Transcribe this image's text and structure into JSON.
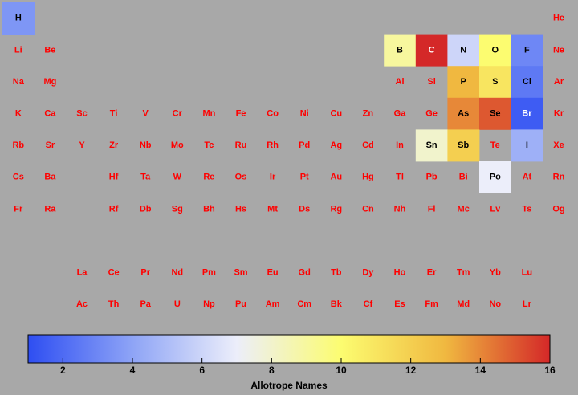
{
  "chart_data": {
    "type": "periodic-heatmap",
    "colorbar_label": "Allotrope Names",
    "clim": [
      1,
      16
    ],
    "cticks": [
      2,
      4,
      6,
      8,
      10,
      12,
      14,
      16
    ],
    "colormap": [
      "#2e4ef2",
      "#8ea4f6",
      "#eceefa",
      "#fcfc70",
      "#f0b840",
      "#d42828"
    ],
    "empty_text_color": "#ff0000",
    "rows": [
      [
        {
          "symbol": "H",
          "value": 3.5
        },
        null,
        null,
        null,
        null,
        null,
        null,
        null,
        null,
        null,
        null,
        null,
        null,
        null,
        null,
        null,
        null,
        {
          "symbol": "He"
        }
      ],
      [
        {
          "symbol": "Li"
        },
        {
          "symbol": "Be"
        },
        null,
        null,
        null,
        null,
        null,
        null,
        null,
        null,
        null,
        null,
        {
          "symbol": "B",
          "value": 9
        },
        {
          "symbol": "C",
          "value": 16
        },
        {
          "symbol": "N",
          "value": 6
        },
        {
          "symbol": "O",
          "value": 10
        },
        {
          "symbol": "F",
          "value": 3
        },
        {
          "symbol": "Ne"
        }
      ],
      [
        {
          "symbol": "Na"
        },
        {
          "symbol": "Mg"
        },
        null,
        null,
        null,
        null,
        null,
        null,
        null,
        null,
        null,
        null,
        {
          "symbol": "Al"
        },
        {
          "symbol": "Si"
        },
        {
          "symbol": "P",
          "value": 13
        },
        {
          "symbol": "S",
          "value": 11
        },
        {
          "symbol": "Cl",
          "value": 2.5
        },
        {
          "symbol": "Ar"
        }
      ],
      [
        {
          "symbol": "K"
        },
        {
          "symbol": "Ca"
        },
        {
          "symbol": "Sc"
        },
        {
          "symbol": "Ti"
        },
        {
          "symbol": "V"
        },
        {
          "symbol": "Cr"
        },
        {
          "symbol": "Mn"
        },
        {
          "symbol": "Fe"
        },
        {
          "symbol": "Co"
        },
        {
          "symbol": "Ni"
        },
        {
          "symbol": "Cu"
        },
        {
          "symbol": "Zn"
        },
        {
          "symbol": "Ga"
        },
        {
          "symbol": "Ge"
        },
        {
          "symbol": "As",
          "value": 14
        },
        {
          "symbol": "Se",
          "value": 15
        },
        {
          "symbol": "Br",
          "value": 1.5
        },
        {
          "symbol": "Kr"
        }
      ],
      [
        {
          "symbol": "Rb"
        },
        {
          "symbol": "Sr"
        },
        {
          "symbol": "Y"
        },
        {
          "symbol": "Zr"
        },
        {
          "symbol": "Nb"
        },
        {
          "symbol": "Mo"
        },
        {
          "symbol": "Tc"
        },
        {
          "symbol": "Ru"
        },
        {
          "symbol": "Rh"
        },
        {
          "symbol": "Pd"
        },
        {
          "symbol": "Ag"
        },
        {
          "symbol": "Cd"
        },
        {
          "symbol": "In"
        },
        {
          "symbol": "Sn",
          "value": 8
        },
        {
          "symbol": "Sb",
          "value": 12
        },
        {
          "symbol": "Te"
        },
        {
          "symbol": "I",
          "value": 4.5
        },
        {
          "symbol": "Xe"
        }
      ],
      [
        {
          "symbol": "Cs"
        },
        {
          "symbol": "Ba"
        },
        null,
        {
          "symbol": "Hf"
        },
        {
          "symbol": "Ta"
        },
        {
          "symbol": "W"
        },
        {
          "symbol": "Re"
        },
        {
          "symbol": "Os"
        },
        {
          "symbol": "Ir"
        },
        {
          "symbol": "Pt"
        },
        {
          "symbol": "Au"
        },
        {
          "symbol": "Hg"
        },
        {
          "symbol": "Tl"
        },
        {
          "symbol": "Pb"
        },
        {
          "symbol": "Bi"
        },
        {
          "symbol": "Po",
          "value": 7
        },
        {
          "symbol": "At"
        },
        {
          "symbol": "Rn"
        }
      ],
      [
        {
          "symbol": "Fr"
        },
        {
          "symbol": "Ra"
        },
        null,
        {
          "symbol": "Rf"
        },
        {
          "symbol": "Db"
        },
        {
          "symbol": "Sg"
        },
        {
          "symbol": "Bh"
        },
        {
          "symbol": "Hs"
        },
        {
          "symbol": "Mt"
        },
        {
          "symbol": "Ds"
        },
        {
          "symbol": "Rg"
        },
        {
          "symbol": "Cn"
        },
        {
          "symbol": "Nh"
        },
        {
          "symbol": "Fl"
        },
        {
          "symbol": "Mc"
        },
        {
          "symbol": "Lv"
        },
        {
          "symbol": "Ts"
        },
        {
          "symbol": "Og"
        }
      ]
    ],
    "f_rows": [
      [
        null,
        null,
        {
          "symbol": "La"
        },
        {
          "symbol": "Ce"
        },
        {
          "symbol": "Pr"
        },
        {
          "symbol": "Nd"
        },
        {
          "symbol": "Pm"
        },
        {
          "symbol": "Sm"
        },
        {
          "symbol": "Eu"
        },
        {
          "symbol": "Gd"
        },
        {
          "symbol": "Tb"
        },
        {
          "symbol": "Dy"
        },
        {
          "symbol": "Ho"
        },
        {
          "symbol": "Er"
        },
        {
          "symbol": "Tm"
        },
        {
          "symbol": "Yb"
        },
        {
          "symbol": "Lu"
        },
        null
      ],
      [
        null,
        null,
        {
          "symbol": "Ac"
        },
        {
          "symbol": "Th"
        },
        {
          "symbol": "Pa"
        },
        {
          "symbol": "U"
        },
        {
          "symbol": "Np"
        },
        {
          "symbol": "Pu"
        },
        {
          "symbol": "Am"
        },
        {
          "symbol": "Cm"
        },
        {
          "symbol": "Bk"
        },
        {
          "symbol": "Cf"
        },
        {
          "symbol": "Es"
        },
        {
          "symbol": "Fm"
        },
        {
          "symbol": "Md"
        },
        {
          "symbol": "No"
        },
        {
          "symbol": "Lr"
        },
        null
      ]
    ]
  }
}
